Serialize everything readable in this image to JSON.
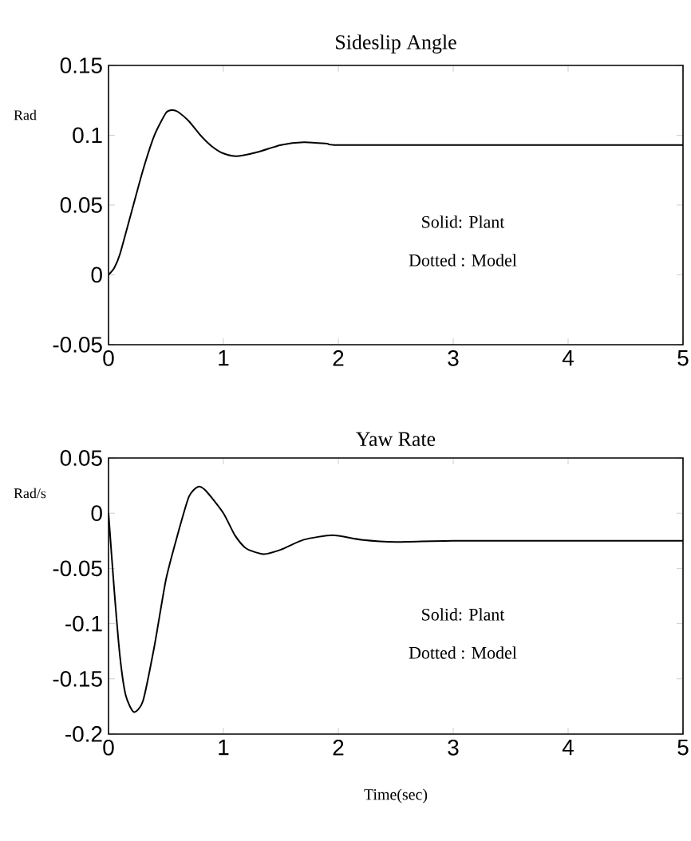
{
  "chart_data": [
    {
      "type": "line",
      "title": "Sideslip Angle",
      "ylabel": "Rad",
      "annotations": [
        "Solid: Plant",
        "Dotted : Model"
      ],
      "x": [
        0,
        0.05,
        0.1,
        0.2,
        0.3,
        0.4,
        0.5,
        0.55,
        0.6,
        0.7,
        0.8,
        0.9,
        1.0,
        1.12,
        1.3,
        1.5,
        1.7,
        1.9,
        2.0,
        3.0,
        4.0,
        5.0
      ],
      "series": [
        {
          "color": "#000000",
          "line_style": "solid",
          "values": [
            0,
            0.005,
            0.015,
            0.045,
            0.075,
            0.1,
            0.116,
            0.118,
            0.117,
            0.11,
            0.1,
            0.092,
            0.087,
            0.085,
            0.088,
            0.093,
            0.095,
            0.094,
            0.093,
            0.093,
            0.093,
            0.093
          ]
        }
      ],
      "xlim": [
        0,
        5
      ],
      "ylim": [
        -0.05,
        0.15
      ],
      "xticks": [
        0,
        1,
        2,
        3,
        4,
        5
      ],
      "yticks": [
        -0.05,
        0,
        0.05,
        0.1,
        0.15
      ]
    },
    {
      "type": "line",
      "title": "Yaw Rate",
      "ylabel": "Rad/s",
      "xlabel": "Time(sec)",
      "annotations": [
        "Solid: Plant",
        "Dotted : Model"
      ],
      "x": [
        0,
        0.05,
        0.1,
        0.15,
        0.22,
        0.3,
        0.4,
        0.5,
        0.6,
        0.7,
        0.78,
        0.85,
        1.0,
        1.1,
        1.2,
        1.35,
        1.5,
        1.7,
        1.95,
        2.2,
        2.5,
        3.0,
        4.0,
        5.0
      ],
      "series": [
        {
          "color": "#000000",
          "line_style": "solid",
          "values": [
            0,
            -0.07,
            -0.13,
            -0.165,
            -0.18,
            -0.17,
            -0.12,
            -0.06,
            -0.02,
            0.015,
            0.024,
            0.02,
            0.0,
            -0.02,
            -0.032,
            -0.037,
            -0.033,
            -0.024,
            -0.02,
            -0.024,
            -0.026,
            -0.025,
            -0.025,
            -0.025
          ]
        }
      ],
      "xlim": [
        0,
        5
      ],
      "ylim": [
        -0.2,
        0.05
      ],
      "xticks": [
        0,
        1,
        2,
        3,
        4,
        5
      ],
      "yticks": [
        -0.2,
        -0.15,
        -0.1,
        -0.05,
        0,
        0.05
      ]
    }
  ]
}
